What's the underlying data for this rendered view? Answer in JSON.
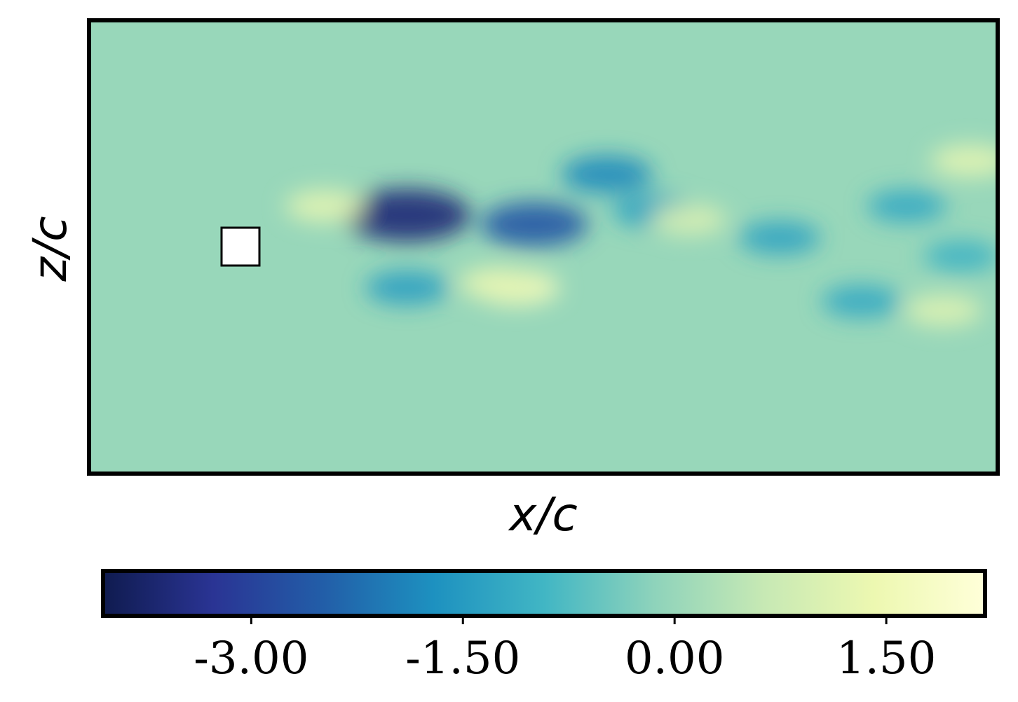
{
  "chart_data": {
    "type": "heatmap",
    "title": "",
    "xlabel": "x/c",
    "ylabel": "z/c",
    "x_ticks": [],
    "y_ticks": [],
    "colormap": "YlGnBu_r",
    "colorbar": {
      "orientation": "horizontal",
      "placement": "bottom",
      "range": [
        -4.05,
        2.2
      ],
      "ticks": [
        -3.0,
        -1.5,
        0.0,
        1.5
      ],
      "tick_labels": [
        "-3.00",
        "-1.50",
        "0.00",
        "1.50"
      ],
      "stops": [
        "#0f1b4f",
        "#2a3494",
        "#225ea8",
        "#1d91c0",
        "#41b6c4",
        "#8ed3bb",
        "#c7e9b4",
        "#edf8b1",
        "#ffffd9"
      ]
    },
    "background_value": 0.0,
    "obstacle": {
      "shape": "square",
      "fill": "#ffffff"
    },
    "field_features": [
      {
        "x": 0.35,
        "z": 0.57,
        "value": -3.6
      },
      {
        "x": 0.49,
        "z": 0.55,
        "value": -2.6
      },
      {
        "x": 0.57,
        "z": 0.66,
        "value": -1.8
      },
      {
        "x": 0.62,
        "z": 0.58,
        "value": -1.3
      },
      {
        "x": 0.47,
        "z": 0.41,
        "value": 1.6
      },
      {
        "x": 0.45,
        "z": 0.42,
        "value": 1.2
      },
      {
        "x": 0.26,
        "z": 0.59,
        "value": 1.2
      },
      {
        "x": 0.66,
        "z": 0.56,
        "value": 1.0
      },
      {
        "x": 0.76,
        "z": 0.52,
        "value": -1.3
      },
      {
        "x": 0.9,
        "z": 0.59,
        "value": -1.2
      },
      {
        "x": 0.85,
        "z": 0.38,
        "value": -1.2
      },
      {
        "x": 0.96,
        "z": 0.48,
        "value": -1.0
      },
      {
        "x": 0.97,
        "z": 0.69,
        "value": 1.2
      },
      {
        "x": 0.94,
        "z": 0.36,
        "value": 1.1
      },
      {
        "x": 0.35,
        "z": 0.41,
        "value": -1.4
      }
    ]
  }
}
